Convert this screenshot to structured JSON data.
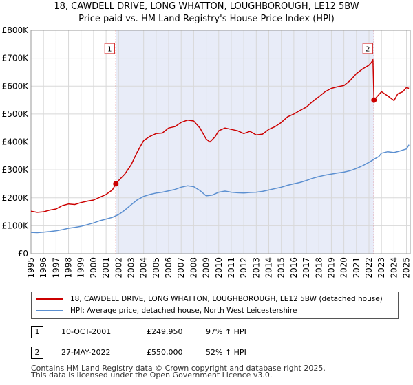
{
  "title_line1": "18, CAWDELL DRIVE, LONG WHATTON, LOUGHBOROUGH, LE12 5BW",
  "title_line2": "Price paid vs. HM Land Registry's House Price Index (HPI)",
  "chart_data": {
    "type": "line",
    "title": "18, CAWDELL DRIVE, LONG WHATTON, LOUGHBOROUGH, LE12 5BW — Price paid vs. HM Land Registry's House Price Index (HPI)",
    "xlabel": "",
    "ylabel": "",
    "xlim": [
      1995,
      2025.3
    ],
    "ylim": [
      0,
      800000
    ],
    "grid": true,
    "y_ticks": [
      0,
      100000,
      200000,
      300000,
      400000,
      500000,
      600000,
      700000,
      800000
    ],
    "y_tick_labels": [
      "£0",
      "£100K",
      "£200K",
      "£300K",
      "£400K",
      "£500K",
      "£600K",
      "£700K",
      "£800K"
    ],
    "x_ticks": [
      1995,
      1996,
      1997,
      1998,
      1999,
      2000,
      2001,
      2002,
      2003,
      2004,
      2005,
      2006,
      2007,
      2008,
      2009,
      2010,
      2011,
      2012,
      2013,
      2014,
      2015,
      2016,
      2017,
      2018,
      2019,
      2020,
      2021,
      2022,
      2023,
      2024,
      2025
    ],
    "x_tick_labels": [
      "1995",
      "1996",
      "1997",
      "1998",
      "1999",
      "2000",
      "2001",
      "2002",
      "2003",
      "2004",
      "2005",
      "2006",
      "2007",
      "2008",
      "2009",
      "2010",
      "2011",
      "2012",
      "2013",
      "2014",
      "2015",
      "2016",
      "2017",
      "2018",
      "2019",
      "2020",
      "2021",
      "2022",
      "2023",
      "2024",
      "2025"
    ],
    "shaded_region": [
      2001.78,
      2022.4
    ],
    "series": [
      {
        "name": "18, CAWDELL DRIVE, LONG WHATTON, LOUGHBOROUGH, LE12 5BW (detached house)",
        "color": "#cc0000",
        "x": [
          1995,
          1995.5,
          1996,
          1996.5,
          1997,
          1997.5,
          1998,
          1998.5,
          1999,
          1999.5,
          2000,
          2000.5,
          2001,
          2001.5,
          2001.78,
          2002,
          2002.5,
          2003,
          2003.5,
          2004,
          2004.5,
          2005,
          2005.5,
          2006,
          2006.5,
          2007,
          2007.5,
          2008,
          2008.5,
          2009,
          2009.3,
          2009.7,
          2010,
          2010.5,
          2011,
          2011.5,
          2012,
          2012.5,
          2013,
          2013.5,
          2014,
          2014.5,
          2015,
          2015.5,
          2016,
          2016.5,
          2017,
          2017.5,
          2018,
          2018.5,
          2019,
          2019.5,
          2020,
          2020.5,
          2021,
          2021.5,
          2022,
          2022.2,
          2022.32,
          2022.4,
          2022.7,
          2023,
          2023.5,
          2024,
          2024.3,
          2024.7,
          2025,
          2025.2
        ],
        "values": [
          152000,
          148000,
          150000,
          156000,
          160000,
          172000,
          178000,
          176000,
          183000,
          188000,
          192000,
          202000,
          212000,
          228000,
          249950,
          262000,
          285000,
          318000,
          365000,
          405000,
          420000,
          430000,
          432000,
          450000,
          455000,
          470000,
          478000,
          475000,
          450000,
          410000,
          400000,
          418000,
          440000,
          450000,
          445000,
          440000,
          430000,
          438000,
          425000,
          428000,
          445000,
          455000,
          470000,
          490000,
          500000,
          513000,
          525000,
          545000,
          562000,
          580000,
          592000,
          598000,
          602000,
          620000,
          645000,
          662000,
          675000,
          685000,
          695000,
          550000,
          565000,
          580000,
          565000,
          548000,
          572000,
          580000,
          595000,
          592000
        ]
      },
      {
        "name": "HPI: Average price, detached house, North West Leicestershire",
        "color": "#5b8fd0",
        "x": [
          1995,
          1995.5,
          1996,
          1996.5,
          1997,
          1997.5,
          1998,
          1998.5,
          1999,
          1999.5,
          2000,
          2000.5,
          2001,
          2001.5,
          2002,
          2002.5,
          2003,
          2003.5,
          2004,
          2004.5,
          2005,
          2005.5,
          2006,
          2006.5,
          2007,
          2007.5,
          2008,
          2008.5,
          2009,
          2009.5,
          2010,
          2010.5,
          2011,
          2011.5,
          2012,
          2012.5,
          2013,
          2013.5,
          2014,
          2014.5,
          2015,
          2015.5,
          2016,
          2016.5,
          2017,
          2017.5,
          2018,
          2018.5,
          2019,
          2019.5,
          2020,
          2020.5,
          2021,
          2021.5,
          2022,
          2022.4,
          2022.8,
          2023,
          2023.5,
          2024,
          2024.5,
          2025,
          2025.2
        ],
        "values": [
          76000,
          75000,
          77000,
          79000,
          82000,
          86000,
          91000,
          94000,
          98000,
          104000,
          110000,
          118000,
          124000,
          130000,
          140000,
          156000,
          175000,
          193000,
          205000,
          212000,
          217000,
          220000,
          225000,
          230000,
          238000,
          243000,
          240000,
          226000,
          207000,
          210000,
          220000,
          224000,
          220000,
          218000,
          217000,
          219000,
          220000,
          223000,
          228000,
          233000,
          238000,
          245000,
          250000,
          255000,
          262000,
          270000,
          276000,
          281000,
          285000,
          289000,
          292000,
          297000,
          305000,
          315000,
          327000,
          338000,
          348000,
          360000,
          365000,
          362000,
          368000,
          375000,
          390000
        ]
      }
    ],
    "annotations": [
      {
        "label": "1",
        "x": 2001.78,
        "value": 249950
      },
      {
        "label": "2",
        "x": 2022.4,
        "value": 550000
      }
    ]
  },
  "legend": {
    "items": [
      {
        "label": "18, CAWDELL DRIVE, LONG WHATTON, LOUGHBOROUGH, LE12 5BW (detached house)",
        "color": "#cc0000"
      },
      {
        "label": "HPI: Average price, detached house, North West Leicestershire",
        "color": "#5b8fd0"
      }
    ]
  },
  "transactions": [
    {
      "num": "1",
      "date": "10-OCT-2001",
      "price": "£249,950",
      "hpi": "97% ↑ HPI"
    },
    {
      "num": "2",
      "date": "27-MAY-2022",
      "price": "£550,000",
      "hpi": "52% ↑ HPI"
    }
  ],
  "footer": {
    "line1": "Contains HM Land Registry data © Crown copyright and database right 2025.",
    "line2": "This data is licensed under the Open Government Licence v3.0."
  }
}
